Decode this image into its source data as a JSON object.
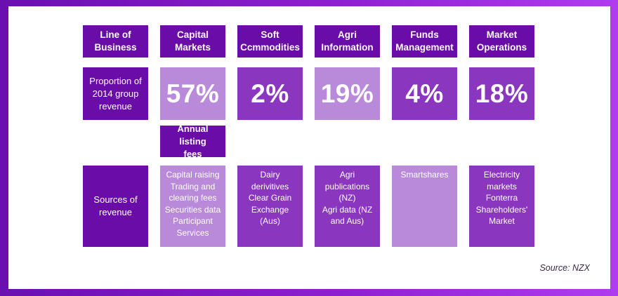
{
  "header": {
    "line_of_business": "Line of\nBusiness",
    "columns": [
      "Capital\nMarkets",
      "Soft\nCcmmodities",
      "Agri\nInformation",
      "Funds\nManagement",
      "Market\nOperations"
    ]
  },
  "proportion": {
    "label": "Proportion of\n2014 group\nrevenue",
    "values": [
      "57%",
      "2%",
      "19%",
      "4%",
      "18%"
    ]
  },
  "annual_listing": "Annual listing\nfees",
  "sources": {
    "label": "Sources of\nrevenue",
    "items": [
      "Capital raising\nTrading and\nclearing fees\nSecurities data\nParticipant\nServices",
      "Dairy\nderivitives\nClear Grain\nExchange (Aus)",
      "Agri\npublications\n(NZ)\nAgri data (NZ\nand Aus)",
      "Smartshares",
      "Electricity\nmarkets\nFonterra\nShareholders'\nMarket"
    ]
  },
  "source_note": "Source: NZX",
  "colors": {
    "dark": "#6a0ca8",
    "medium": "#8a36bf",
    "light": "#b98ad9"
  }
}
